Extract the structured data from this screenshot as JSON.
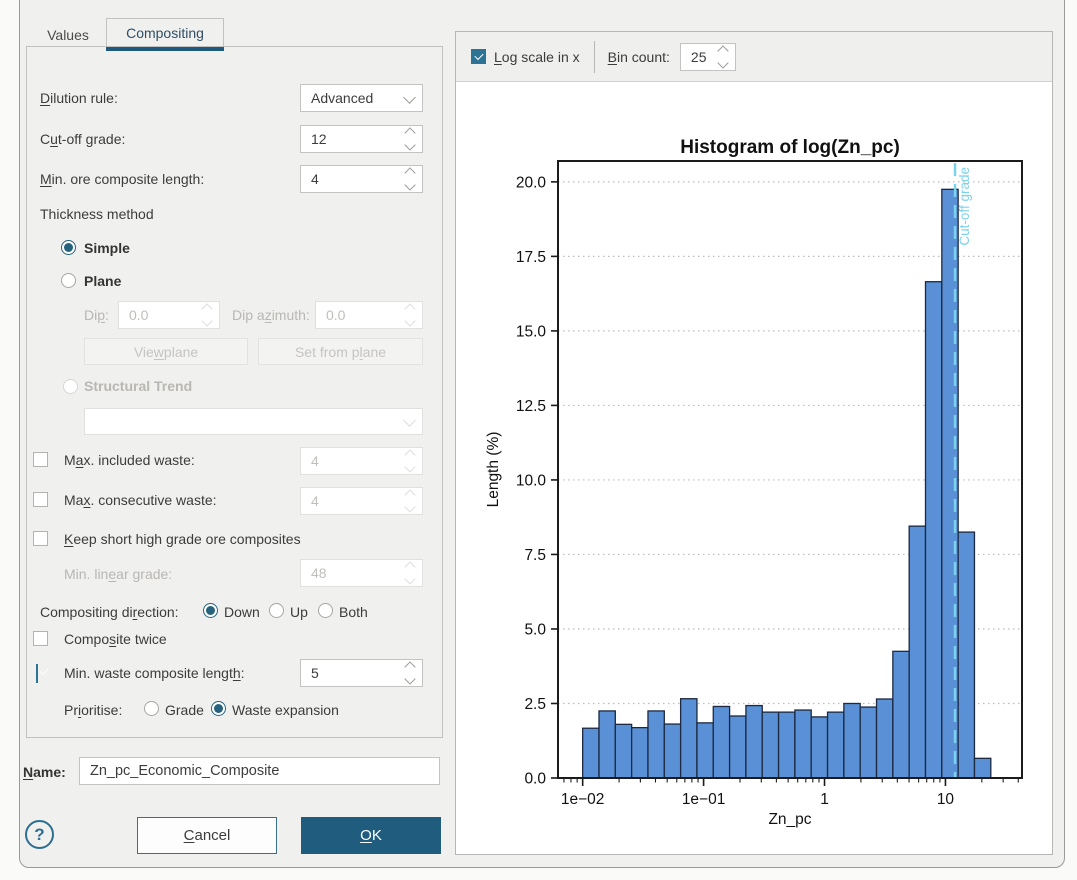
{
  "tabs": {
    "values": "Values",
    "compositing": "Compositing",
    "active": "Compositing"
  },
  "form": {
    "dilution_rule": {
      "label": {
        "text": "Dilution rule:",
        "u": 0
      },
      "value": "Advanced"
    },
    "cutoff_grade": {
      "label": {
        "text": "Cut-off grade:",
        "u": 1
      },
      "value": "12"
    },
    "min_ore_composite_length": {
      "label": {
        "text": "Min. ore composite length:",
        "u": 0
      },
      "value": "4"
    },
    "thickness_method": {
      "label": "Thickness method",
      "simple": "Simple",
      "plane": "Plane",
      "structural_trend": "Structural Trend",
      "selected": "Simple",
      "structural_trend_value": ""
    },
    "dip": {
      "label": {
        "text": "Dip:",
        "u": 2
      },
      "value": "0.0"
    },
    "dip_azimuth": {
      "label": {
        "text": "Dip azimuth:",
        "u": 5
      },
      "value": "0.0"
    },
    "view_plane": {
      "text": "View plane",
      "u": 3
    },
    "set_from_plane": {
      "text": "Set from plane",
      "u": 10
    },
    "max_included_waste": {
      "label": {
        "text": "Max. included waste:",
        "u": 1
      },
      "checked": false,
      "value": "4"
    },
    "max_consecutive_waste": {
      "label": {
        "text": "Max. consecutive waste:",
        "u": 2
      },
      "checked": false,
      "value": "4"
    },
    "keep_short_high_grade": {
      "label": {
        "text": "Keep short high grade ore composites",
        "u": 0
      },
      "checked": false
    },
    "min_linear_grade": {
      "label": {
        "text": "Min. linear grade:",
        "u": 8
      },
      "value": "48"
    },
    "compositing_direction": {
      "label": {
        "text": "Compositing direction:",
        "u": 14
      },
      "options": [
        "Down",
        "Up",
        "Both"
      ],
      "selected": "Down"
    },
    "composite_twice": {
      "label": {
        "text": "Composite twice",
        "u": 5
      },
      "checked": false
    },
    "min_waste_composite_length": {
      "label": {
        "text": "Min. waste composite length:",
        "u": 26
      },
      "checked": true,
      "value": "5"
    },
    "prioritise": {
      "label": {
        "text": "Prioritise:",
        "u": 2
      },
      "options": [
        "Grade",
        "Waste expansion"
      ],
      "selected": "Waste expansion"
    }
  },
  "name_field": {
    "label": {
      "text": "Name:",
      "u": 0
    },
    "value": "Zn_pc_Economic_Composite"
  },
  "footer": {
    "help": "?",
    "cancel": {
      "text": "Cancel",
      "u": 0
    },
    "ok": {
      "text": "OK",
      "u": 0
    }
  },
  "histogram_panel": {
    "log_scale": {
      "label": {
        "text": "Log scale in x",
        "u": 0
      },
      "checked": true
    },
    "bin_count": {
      "label": {
        "text": "Bin count:",
        "u": 0
      },
      "value": "25"
    }
  },
  "colors": {
    "accent_dark": "#1f5c7e",
    "checkbox_on": "#2d7394",
    "radio_selected": "#26637f",
    "bar_fill": "#5a90d5",
    "cutoff_line": "#7bd2ec"
  },
  "chart_data": {
    "type": "bar",
    "title": "Histogram of log(Zn_pc)",
    "xlabel": "Zn_pc",
    "ylabel": "Length (%)",
    "x_scale": "log",
    "xlim_log10": [
      -2.204,
      1.633
    ],
    "ylim": [
      0,
      20.7
    ],
    "yticks": [
      0,
      2.5,
      5,
      7.5,
      10,
      12.5,
      15,
      17.5,
      20
    ],
    "xticks": [
      {
        "value": 0.01,
        "label": "1e−02"
      },
      {
        "value": 0.1,
        "label": "1e−01"
      },
      {
        "value": 1,
        "label": "1"
      },
      {
        "value": 10,
        "label": "10"
      }
    ],
    "grid": "dotted-horizontal",
    "bins": {
      "log10_start": -2,
      "log10_width": 0.135,
      "count": 25
    },
    "values": [
      1.67,
      2.25,
      1.8,
      1.69,
      2.25,
      1.81,
      2.66,
      1.85,
      2.4,
      2.08,
      2.43,
      2.21,
      2.21,
      2.28,
      2.05,
      2.21,
      2.5,
      2.38,
      2.65,
      4.25,
      8.45,
      16.65,
      19.75,
      8.25,
      0.66
    ],
    "bar_color": "#5a90d5",
    "bar_edge_color": "#1c2940",
    "cutoff_marker": {
      "value": 12,
      "label": "Cut-off grade",
      "color": "#7bd2ec"
    }
  }
}
